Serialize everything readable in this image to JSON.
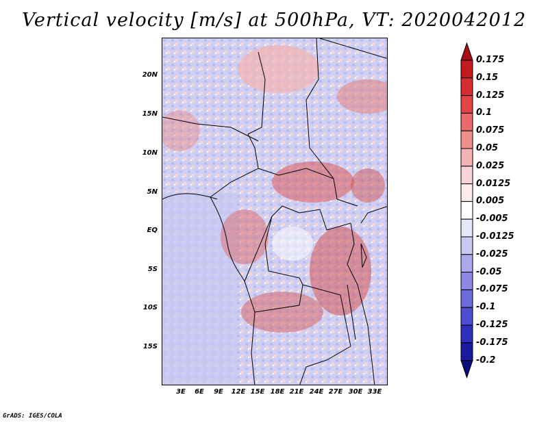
{
  "title": "Vertical velocity [m/s] at 500hPa, VT: 2020042012",
  "credit": "GrADS: IGES/COLA",
  "axes": {
    "lat_labels": [
      "20N",
      "15N",
      "10N",
      "5N",
      "EQ",
      "5S",
      "10S",
      "15S"
    ],
    "lon_labels": [
      "3E",
      "6E",
      "9E",
      "12E",
      "15E",
      "18E",
      "21E",
      "24E",
      "27E",
      "30E",
      "33E"
    ]
  },
  "colorbar": {
    "labels": [
      "0.175",
      "0.15",
      "0.125",
      "0.1",
      "0.075",
      "0.05",
      "0.025",
      "0.0125",
      "0.005",
      "-0.005",
      "-0.0125",
      "-0.025",
      "-0.05",
      "-0.075",
      "-0.1",
      "-0.125",
      "-0.175",
      "-0.2"
    ],
    "colors": [
      "#a50f15",
      "#c21a1f",
      "#d42e2e",
      "#e04545",
      "#e86a6a",
      "#f08e8e",
      "#f6b3b3",
      "#fad4d4",
      "#fdebeb",
      "#ffffff",
      "#e6e6fb",
      "#c9c9f4",
      "#a9a9ee",
      "#8a8ae6",
      "#6b6bdc",
      "#4d4dcf",
      "#2e2ebf",
      "#1a1a9e",
      "#0d0d80"
    ]
  }
}
